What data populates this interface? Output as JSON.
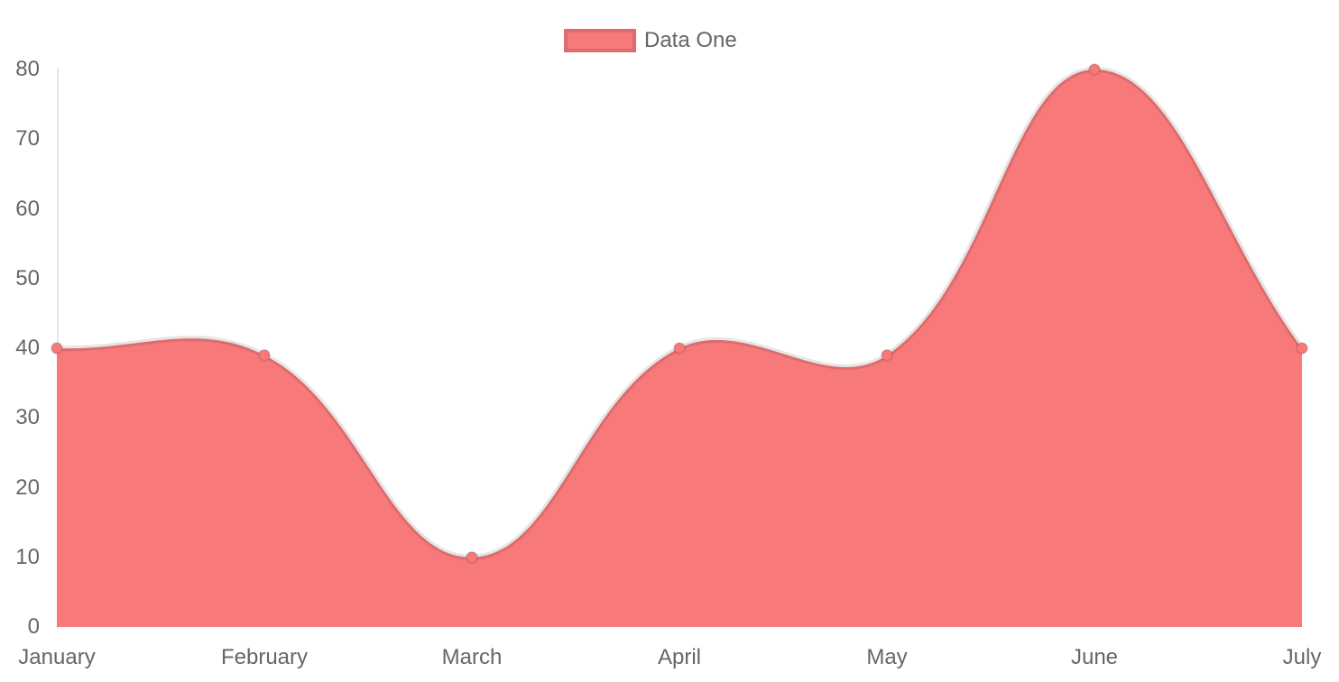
{
  "legend": {
    "label": "Data One"
  },
  "chart_data": {
    "type": "area",
    "title": "",
    "categories": [
      "January",
      "February",
      "March",
      "April",
      "May",
      "June",
      "July"
    ],
    "series": [
      {
        "name": "Data One",
        "values": [
          40,
          39,
          10,
          40,
          39,
          80,
          40
        ]
      }
    ],
    "xlabel": "",
    "ylabel": "",
    "ylim": [
      0,
      80
    ],
    "yticks": [
      0,
      10,
      20,
      30,
      40,
      50,
      60,
      70,
      80
    ],
    "grid": false,
    "legend_position": "top",
    "line_tension": 0.4,
    "colors": {
      "fill": "#f87979",
      "point_fill": "#f87979",
      "line": "rgba(0,0,0,0.1)",
      "point_border": "rgba(0,0,0,0.1)",
      "axis_line": "rgba(0,0,0,0.1)",
      "tick_text": "#666666"
    }
  }
}
